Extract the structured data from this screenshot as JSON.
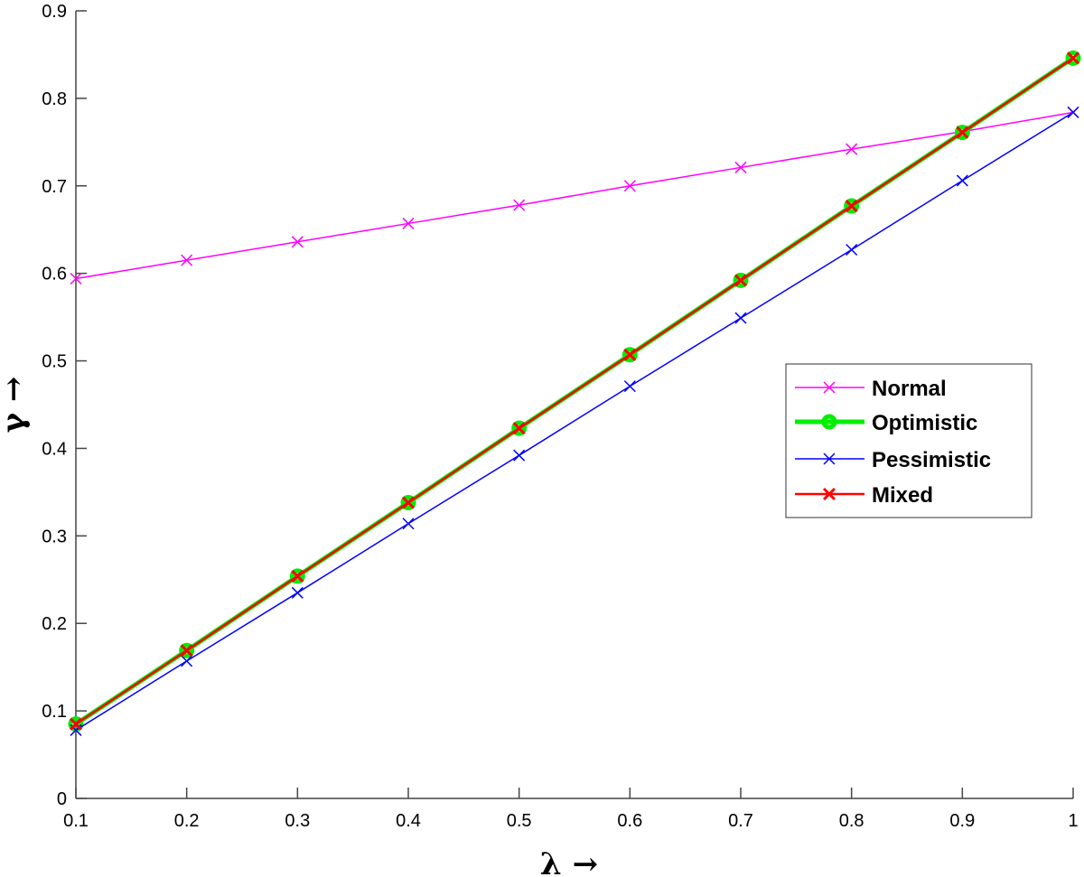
{
  "chart_data": {
    "type": "line",
    "title": "",
    "xlabel": "λ →",
    "ylabel": "γ →",
    "xlim": [
      0.1,
      1.0
    ],
    "ylim": [
      0,
      0.9
    ],
    "grid": false,
    "legend_position": "east",
    "x": [
      0.1,
      0.2,
      0.3,
      0.4,
      0.5,
      0.6,
      0.7,
      0.8,
      0.9,
      1.0
    ],
    "x_ticks": [
      "0.1",
      "0.2",
      "0.3",
      "0.4",
      "0.5",
      "0.6",
      "0.7",
      "0.8",
      "0.9",
      "1"
    ],
    "y_ticks": [
      "0",
      "0.1",
      "0.2",
      "0.3",
      "0.4",
      "0.5",
      "0.6",
      "0.7",
      "0.8",
      "0.9"
    ],
    "series": [
      {
        "name": "Normal",
        "color": "#ff00ff",
        "marker": "x",
        "line_width": 1.5,
        "values": [
          0.594,
          0.615,
          0.636,
          0.657,
          0.678,
          0.7,
          0.721,
          0.742,
          0.762,
          0.784
        ]
      },
      {
        "name": "Optimistic",
        "color": "#00ee00",
        "marker": "o",
        "line_width": 5,
        "values": [
          0.085,
          0.169,
          0.254,
          0.338,
          0.423,
          0.507,
          0.592,
          0.677,
          0.761,
          0.846
        ]
      },
      {
        "name": "Pessimistic",
        "color": "#0000ff",
        "marker": "x",
        "line_width": 1.5,
        "values": [
          0.078,
          0.157,
          0.235,
          0.314,
          0.392,
          0.471,
          0.549,
          0.627,
          0.706,
          0.784
        ]
      },
      {
        "name": "Mixed",
        "color": "#ff0000",
        "marker": "x",
        "line_width": 2.5,
        "values": [
          0.085,
          0.169,
          0.254,
          0.338,
          0.423,
          0.507,
          0.592,
          0.677,
          0.761,
          0.846
        ]
      }
    ]
  },
  "legend": {
    "items": [
      "Normal",
      "Optimistic",
      "Pessimistic",
      "Mixed"
    ]
  }
}
